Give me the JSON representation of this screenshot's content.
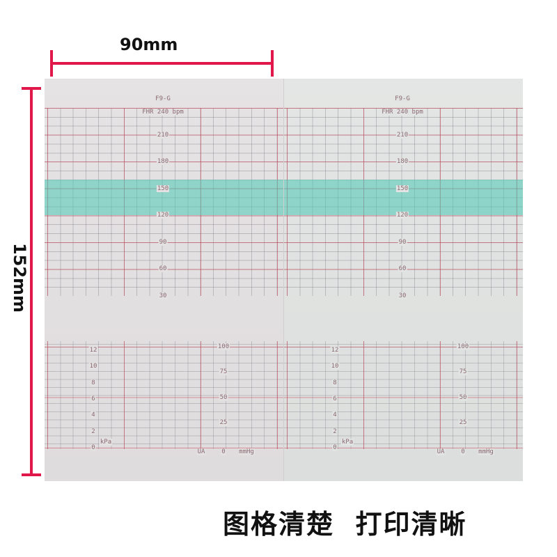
{
  "dimensions": {
    "width_label": "90mm",
    "height_label": "152mm",
    "color": "#e0194a"
  },
  "paper": {
    "model": "F9-G",
    "fhr_title": "FHR 240 bpm",
    "fhr_ticks": [
      210,
      180,
      150,
      120,
      90,
      60,
      30
    ],
    "normal_band_bpm": [
      120,
      160
    ],
    "band_color": "#50c8b4",
    "ua_mmhg_ticks": [
      100,
      75,
      50,
      25
    ],
    "ua_label": "UA",
    "ua_zero": "0",
    "ua_unit": "mmHg",
    "kpa_ticks": [
      12,
      10,
      8,
      6,
      4,
      2,
      0
    ],
    "kpa_unit": "kPa"
  },
  "caption": "图格清楚  打印清晰"
}
